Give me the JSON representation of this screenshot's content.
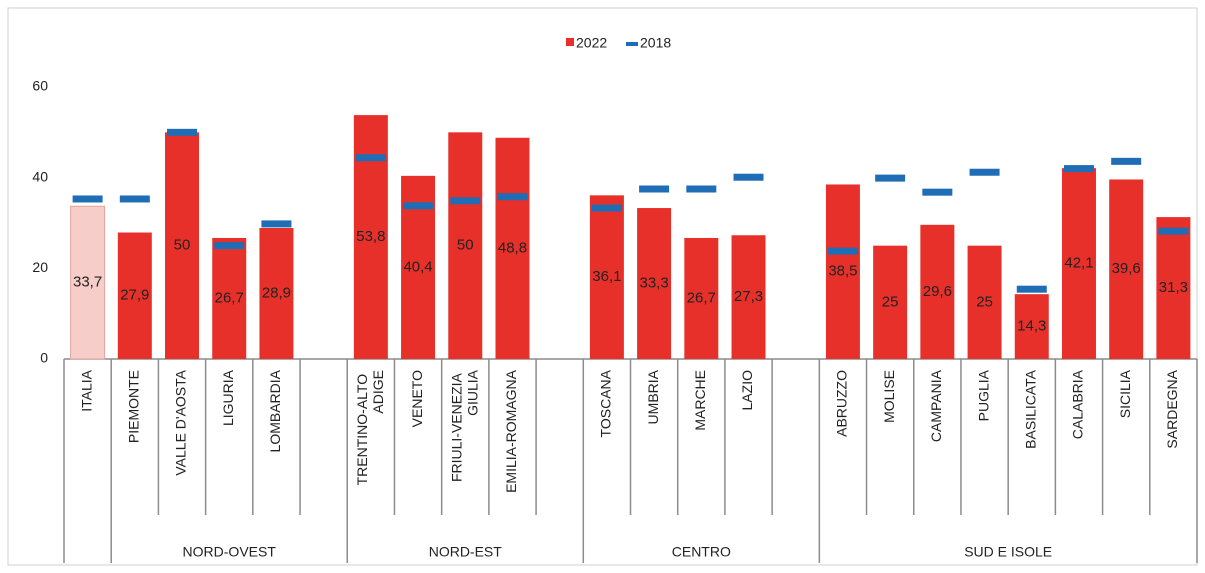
{
  "chart_data": {
    "type": "bar",
    "categories": [
      "ITALIA",
      "PIEMONTE",
      "VALLE D'AOSTA",
      "LIGURIA",
      "LOMBARDIA",
      null,
      "TRENTINO-ALTO ADIGE",
      "VENETO",
      "FRIULI-VENEZIA GIULIA",
      "EMILIA-ROMAGNA",
      null,
      "TOSCANA",
      "UMBRIA",
      "MARCHE",
      "LAZIO",
      null,
      "ABRUZZO",
      "MOLISE",
      "CAMPANIA",
      "PUGLIA",
      "BASILICATA",
      "CALABRIA",
      "SICILIA",
      "SARDEGNA"
    ],
    "groups": [
      {
        "label": null,
        "size": 1
      },
      {
        "label": "NORD-OVEST",
        "size": 5
      },
      {
        "label": "NORD-EST",
        "size": 5
      },
      {
        "label": "CENTRO",
        "size": 5
      },
      {
        "label": "SUD E ISOLE",
        "size": 8
      }
    ],
    "series": [
      {
        "name": "2022",
        "color": "#e8302a",
        "colors": [
          "#f6cdc9",
          "#e8302a",
          "#e8302a",
          "#e8302a",
          "#e8302a",
          null,
          "#e8302a",
          "#e8302a",
          "#e8302a",
          "#e8302a",
          null,
          "#e8302a",
          "#e8302a",
          "#e8302a",
          "#e8302a",
          null,
          "#e8302a",
          "#e8302a",
          "#e8302a",
          "#e8302a",
          "#e8302a",
          "#e8302a",
          "#e8302a",
          "#e8302a"
        ],
        "values": [
          33.7,
          27.9,
          50,
          26.7,
          28.9,
          null,
          53.8,
          40.4,
          50,
          48.8,
          null,
          36.1,
          33.3,
          26.7,
          27.3,
          null,
          38.5,
          25,
          29.6,
          25,
          14.3,
          42.1,
          39.6,
          31.3
        ],
        "value_labels": [
          "33,7",
          "27,9",
          "50",
          "26,7",
          "28,9",
          null,
          "53,8",
          "40,4",
          "50",
          "48,8",
          null,
          "36,1",
          "33,3",
          "26,7",
          "27,3",
          null,
          "38,5",
          "25",
          "29,6",
          "25",
          "14,3",
          "42,1",
          "39,6",
          "31,3"
        ]
      },
      {
        "name": "2018",
        "color": "#1f6db5",
        "marker": "dash",
        "values": [
          35.3,
          35.3,
          50,
          25,
          29.8,
          null,
          44.4,
          33.8,
          34.9,
          35.8,
          null,
          33.3,
          37.5,
          37.5,
          40.1,
          null,
          23.8,
          39.9,
          36.8,
          41.2,
          15.4,
          42,
          43.6,
          28.2
        ]
      }
    ],
    "ylim": [
      0,
      60
    ],
    "yticks": [
      0,
      20,
      40,
      60
    ],
    "grid": false,
    "legend": "top"
  }
}
